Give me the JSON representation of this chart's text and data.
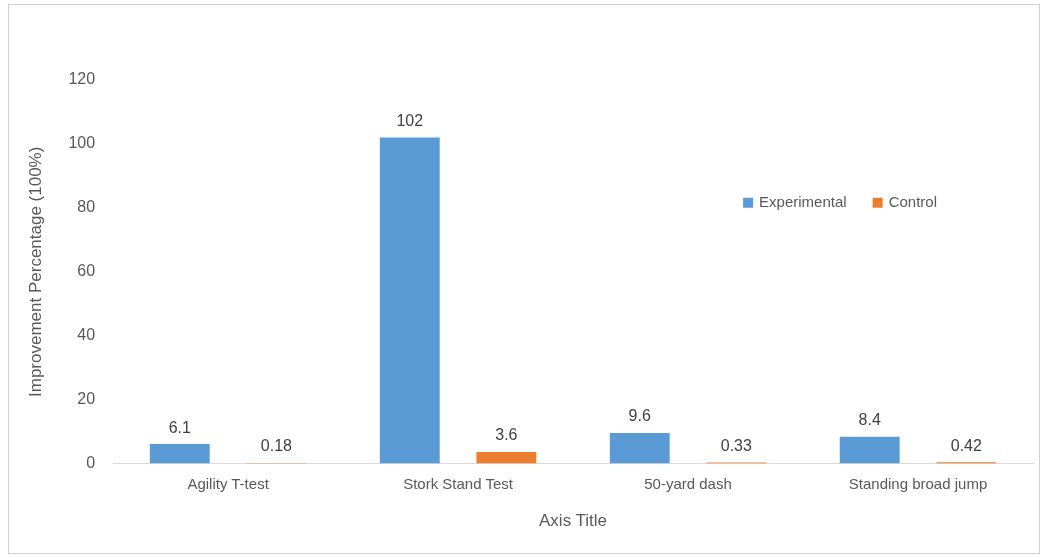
{
  "chart_data": {
    "type": "bar",
    "xlabel": "Axis Title",
    "ylabel": "Improvement Percentage (100%)",
    "categories": [
      "Agility T-test",
      "Stork Stand Test",
      "50-yard dash",
      "Standing broad jump"
    ],
    "series": [
      {
        "name": "Experimental",
        "color": "#5b9bd5",
        "values": [
          6.1,
          102,
          9.6,
          8.4
        ]
      },
      {
        "name": "Control",
        "color": "#ed7d31",
        "values": [
          0.18,
          3.6,
          0.33,
          0.42
        ]
      }
    ],
    "ylim": [
      0,
      120
    ],
    "yticks": [
      0,
      20,
      40,
      60,
      80,
      100,
      120
    ],
    "grid": false,
    "legend": "right",
    "data_labels": true
  }
}
